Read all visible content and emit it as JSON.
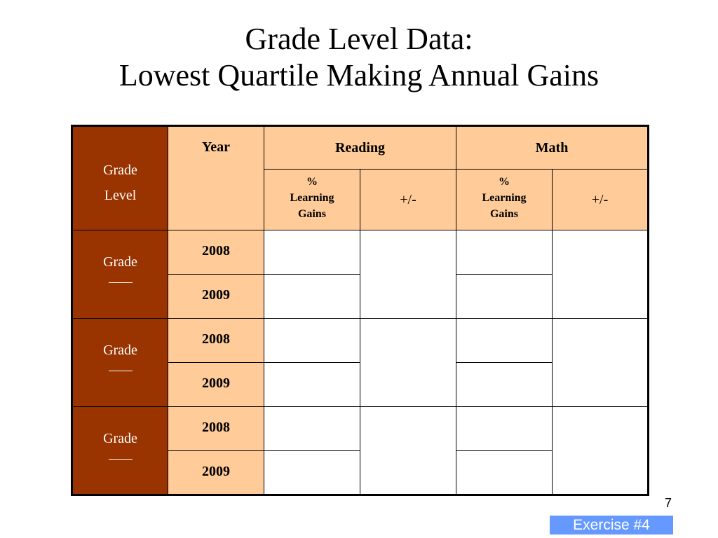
{
  "title": {
    "line1": "Grade Level Data:",
    "line2": "Lowest Quartile Making Annual Gains"
  },
  "table": {
    "header": {
      "grade_level_line1": "Grade",
      "grade_level_line2": "Level",
      "year": "Year",
      "reading": "Reading",
      "math": "Math",
      "pct_line1": "%",
      "pct_line2": "Learning",
      "pct_line3": "Gains",
      "plus_minus": "+/-"
    },
    "groups": [
      {
        "grade_label": "Grade",
        "years": [
          "2008",
          "2009"
        ]
      },
      {
        "grade_label": "Grade",
        "years": [
          "2008",
          "2009"
        ]
      },
      {
        "grade_label": "Grade",
        "years": [
          "2008",
          "2009"
        ]
      }
    ]
  },
  "footer": {
    "page_number": "7",
    "exercise_label": "Exercise #4"
  },
  "colors": {
    "grade_column": "#993300",
    "header_fill": "#ffcc99",
    "exercise_button": "#6699ff"
  }
}
